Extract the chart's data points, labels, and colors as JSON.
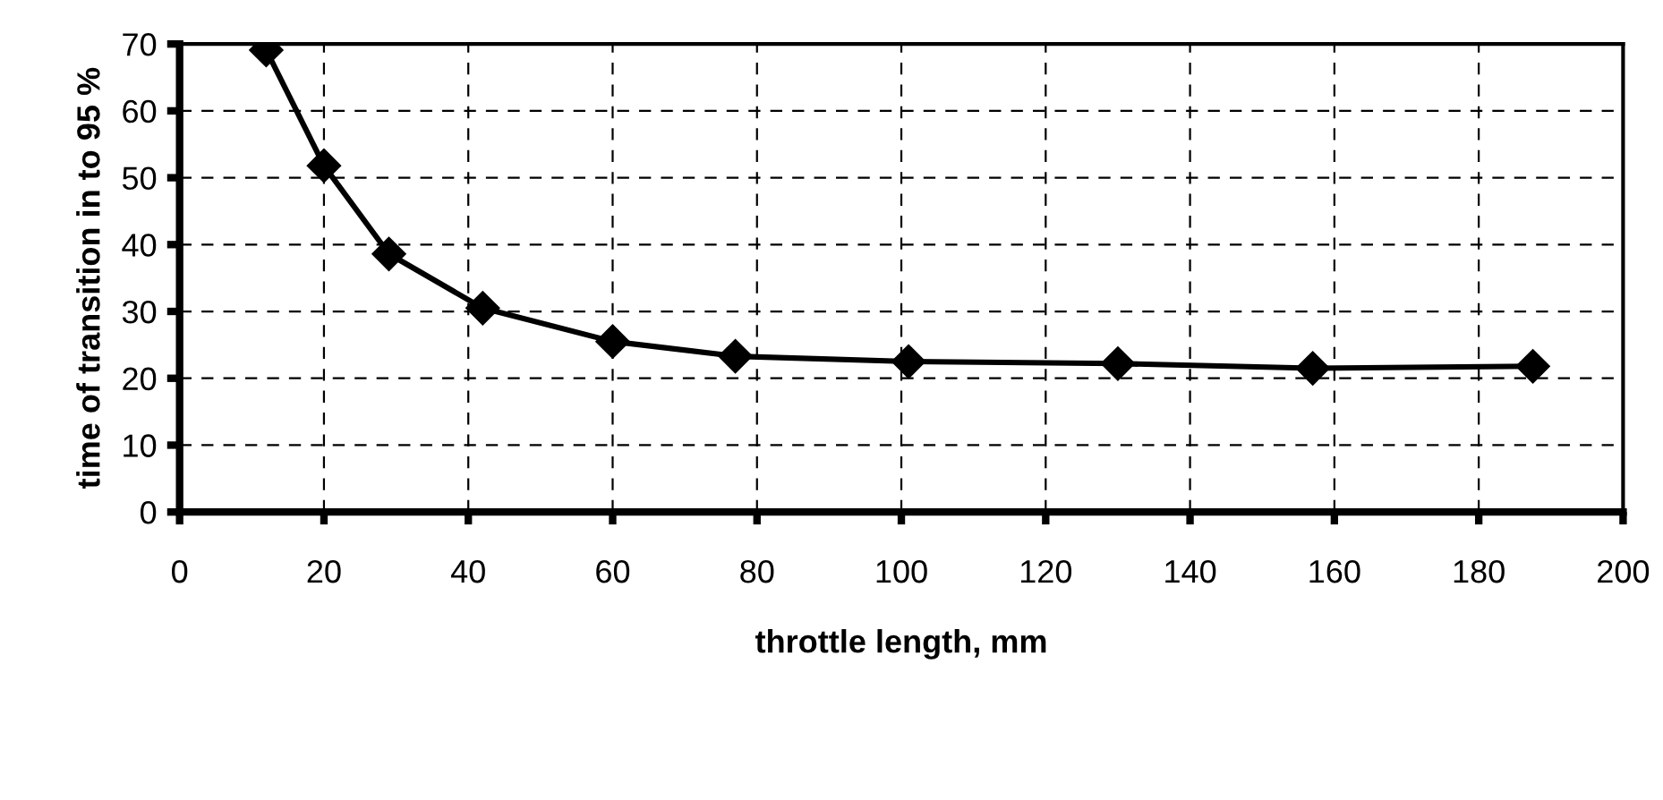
{
  "chart_data": {
    "type": "line",
    "xlabel": "throttle length, mm",
    "ylabel": "time of transition in to 95 %",
    "x": [
      12,
      20,
      29,
      42,
      60,
      77,
      101,
      130,
      157,
      187.5
    ],
    "series": [
      {
        "color": "#000000",
        "values": [
          69.1,
          51.8,
          38.6,
          30.5,
          25.5,
          23.3,
          22.5,
          22.2,
          21.5,
          21.8
        ]
      }
    ],
    "xlim": [
      0,
      200
    ],
    "xticks": [
      0,
      20,
      40,
      60,
      80,
      100,
      120,
      140,
      160,
      180,
      200
    ],
    "ylim": [
      0,
      70
    ],
    "yticks": [
      0,
      10,
      20,
      30,
      40,
      50,
      60,
      70
    ],
    "grid": true,
    "marker": "diamond",
    "line_style": "solid",
    "legend": false
  }
}
